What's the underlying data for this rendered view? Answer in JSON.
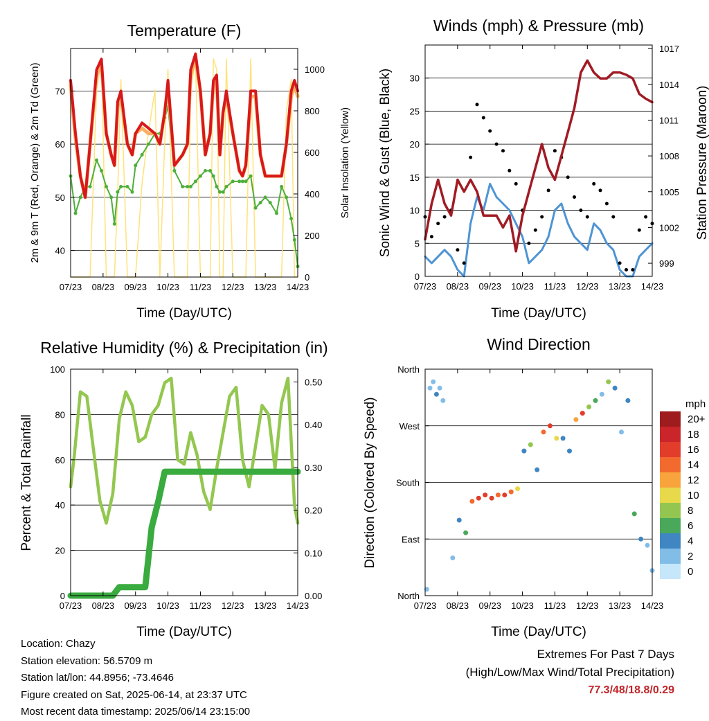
{
  "colors": {
    "red": "#d7191c",
    "orange": "#fdae61",
    "green": "#4daf3a",
    "yellow": "#ffe27a",
    "blue": "#4e94d4",
    "black": "#000000",
    "maroon": "#a11b24",
    "lightgreen": "#93c74f",
    "darkgreen": "#3aab3f",
    "extreme": "#c0262a"
  },
  "x_ticks": [
    "07/23",
    "08/23",
    "09/23",
    "10/23",
    "11/23",
    "12/23",
    "13/23",
    "14/23"
  ],
  "x_label": "Time (Day/UTC)",
  "speed_legend": {
    "title": "mph",
    "labels": [
      "20+",
      "18",
      "16",
      "14",
      "12",
      "10",
      "8",
      "6",
      "4",
      "2",
      "0"
    ],
    "colors": [
      "#9e1b1e",
      "#c9252a",
      "#e23c2b",
      "#f26a2e",
      "#f9a33c",
      "#e8d94a",
      "#92c650",
      "#4aa85a",
      "#3f86c2",
      "#82bde8",
      "#c6e6fa"
    ]
  },
  "footer": {
    "location": "Location: Chazy",
    "elevation": "Station elevation: 56.5709 m",
    "latlon": "Station lat/lon: 44.8956; -73.4646",
    "created": "Figure created on Sat, 2025-06-14, at 23:37 UTC",
    "recent": "Most recent data timestamp: 2025/06/14 23:15:00"
  },
  "extremes": {
    "line1": "Extremes For Past 7 Days",
    "line2": "(High/Low/Max Wind/Total Precipitation)",
    "values": "77.3/48/18.8/0.29"
  },
  "chart_data": [
    {
      "type": "line",
      "title": "Temperature (F)",
      "xlabel": "Time (Day/UTC)",
      "ylabel": "2m & 9m T (Red, Orange) & 2m Td (Green)",
      "y2label": "Solar Insolation (Yellow)",
      "ylim": [
        35,
        78
      ],
      "y2lim": [
        0,
        1100
      ],
      "yticks": [
        "40",
        "50",
        "60",
        "70"
      ],
      "y2ticks": [
        "0",
        "200",
        "400",
        "600",
        "800",
        "1000"
      ],
      "grid": true,
      "x": [
        7.0,
        7.15,
        7.3,
        7.45,
        7.6,
        7.8,
        7.95,
        8.1,
        8.25,
        8.35,
        8.45,
        8.55,
        8.75,
        8.9,
        9.0,
        9.2,
        9.4,
        9.6,
        9.75,
        9.9,
        10.0,
        10.2,
        10.45,
        10.6,
        10.7,
        10.85,
        11.0,
        11.15,
        11.3,
        11.4,
        11.5,
        11.6,
        11.7,
        11.8,
        12.0,
        12.2,
        12.3,
        12.4,
        12.55,
        12.7,
        12.85,
        13.0,
        13.15,
        13.35,
        13.5,
        13.65,
        13.8,
        13.9,
        14.0
      ],
      "series": [
        {
          "name": "2m T",
          "values": [
            72,
            62,
            54,
            50,
            60,
            74,
            76,
            62,
            58,
            56,
            68,
            70,
            60,
            58,
            62,
            64,
            63,
            62,
            60,
            66,
            72,
            56,
            58,
            60,
            74,
            77,
            70,
            58,
            62,
            72,
            73,
            58,
            66,
            70,
            62,
            55,
            54,
            56,
            70,
            70,
            58,
            54,
            54,
            54,
            54,
            60,
            70,
            72,
            70
          ]
        },
        {
          "name": "9m T",
          "values": [
            71,
            61,
            54,
            50,
            60,
            73,
            75,
            62,
            58,
            56,
            67,
            69,
            60,
            58,
            62,
            63,
            62,
            62,
            60,
            66,
            71,
            56,
            58,
            60,
            73,
            76,
            70,
            58,
            62,
            71,
            72,
            58,
            66,
            69,
            62,
            55,
            54,
            56,
            69,
            69,
            58,
            54,
            54,
            54,
            54,
            60,
            69,
            71,
            69
          ]
        },
        {
          "name": "2m Td",
          "values": [
            54,
            47,
            50,
            52,
            52,
            57,
            55,
            52,
            50,
            45,
            51,
            52,
            52,
            51,
            56,
            58,
            60,
            62,
            62,
            65,
            67,
            55,
            52,
            52,
            52,
            53,
            54,
            55,
            55,
            54,
            52,
            51,
            51,
            52,
            53,
            53,
            53,
            53,
            54,
            48,
            49,
            50,
            49,
            47,
            52,
            50,
            46,
            42,
            37
          ]
        },
        {
          "name": "Solar Insolation",
          "values": [
            0,
            0,
            0,
            0,
            0,
            900,
            1050,
            0,
            0,
            0,
            400,
            950,
            0,
            0,
            0,
            450,
            700,
            900,
            0,
            650,
            1000,
            0,
            0,
            0,
            900,
            1050,
            0,
            0,
            0,
            1050,
            1000,
            0,
            0,
            1050,
            0,
            0,
            0,
            0,
            1050,
            0,
            0,
            0,
            0,
            0,
            0,
            800,
            950,
            0,
            0
          ]
        }
      ]
    },
    {
      "type": "line",
      "title": "Winds (mph) & Pressure (mb)",
      "xlabel": "Time (Day/UTC)",
      "ylabel": "Sonic Wind & Gust (Blue, Black)",
      "y2label": "Station Pressure (Maroon)",
      "ylim": [
        0,
        35
      ],
      "y2lim": [
        997.9,
        1017.3
      ],
      "yticks": [
        "0",
        "5",
        "10",
        "15",
        "20",
        "25",
        "30"
      ],
      "y2ticks": [
        "999",
        "1002",
        "1005",
        "1008",
        "1011",
        "1014",
        "1017"
      ],
      "grid": true,
      "x": [
        7.0,
        7.2,
        7.4,
        7.6,
        7.8,
        8.0,
        8.2,
        8.4,
        8.6,
        8.8,
        9.0,
        9.2,
        9.4,
        9.6,
        9.8,
        10.0,
        10.2,
        10.4,
        10.6,
        10.8,
        11.0,
        11.2,
        11.4,
        11.6,
        11.8,
        12.0,
        12.2,
        12.4,
        12.6,
        12.8,
        13.0,
        13.2,
        13.4,
        13.6,
        13.8,
        14.0
      ],
      "series": [
        {
          "name": "Sonic Wind",
          "values": [
            3,
            2,
            3,
            4,
            3,
            1,
            0,
            8,
            12,
            10,
            14,
            12,
            11,
            10,
            8,
            6,
            2,
            3,
            4,
            6,
            10,
            11,
            8,
            6,
            5,
            4,
            8,
            7,
            5,
            4,
            1,
            0,
            0,
            3,
            4,
            5
          ]
        },
        {
          "name": "Gust",
          "values": [
            9,
            6,
            8,
            9,
            10,
            4,
            2,
            18,
            26,
            24,
            22,
            20,
            19,
            16,
            14,
            10,
            5,
            7,
            9,
            13,
            19,
            18,
            15,
            12,
            10,
            9,
            14,
            13,
            11,
            9,
            2,
            1,
            1,
            7,
            9,
            8
          ]
        },
        {
          "name": "Station Pressure",
          "values": [
            1001,
            1004,
            1006,
            1004,
            1003,
            1006,
            1005,
            1006,
            1005,
            1003,
            1003,
            1003,
            1002,
            1003,
            1000,
            1003,
            1005,
            1007,
            1009,
            1007,
            1006,
            1008,
            1010,
            1012,
            1015,
            1016,
            1015,
            1014.5,
            1014.5,
            1015,
            1015,
            1014.8,
            1014.5,
            1013.2,
            1012.8,
            1012.5
          ]
        }
      ]
    },
    {
      "type": "line",
      "title": "Relative Humidity (%) & Precipitation (in)",
      "xlabel": "Time (Day/UTC)",
      "ylabel": "Percent & Total Rainfall",
      "ylim": [
        0,
        100
      ],
      "y2lim": [
        0,
        0.53
      ],
      "yticks": [
        "0",
        "20",
        "40",
        "60",
        "80",
        "100"
      ],
      "y2ticks": [
        "0.00",
        "0.10",
        "0.20",
        "0.30",
        "0.40",
        "0.50"
      ],
      "grid": true,
      "x": [
        7.0,
        7.1,
        7.3,
        7.5,
        7.7,
        7.9,
        8.1,
        8.3,
        8.5,
        8.7,
        8.9,
        9.1,
        9.3,
        9.5,
        9.7,
        9.9,
        10.1,
        10.3,
        10.5,
        10.7,
        10.9,
        11.1,
        11.3,
        11.5,
        11.7,
        11.9,
        12.1,
        12.3,
        12.5,
        12.7,
        12.9,
        13.1,
        13.3,
        13.5,
        13.7,
        13.9,
        14.0
      ],
      "series": [
        {
          "name": "Relative Humidity",
          "values": [
            48,
            60,
            90,
            88,
            65,
            42,
            32,
            45,
            78,
            90,
            84,
            68,
            70,
            80,
            84,
            94,
            96,
            60,
            58,
            72,
            62,
            46,
            38,
            56,
            72,
            88,
            92,
            60,
            48,
            66,
            84,
            80,
            56,
            85,
            96,
            40,
            32
          ]
        },
        {
          "name": "Total Precipitation",
          "values": [
            0,
            0,
            0,
            0,
            0,
            0,
            0,
            0,
            0.02,
            0.02,
            0.02,
            0.02,
            0.02,
            0.16,
            0.22,
            0.29,
            0.29,
            0.29,
            0.29,
            0.29,
            0.29,
            0.29,
            0.29,
            0.29,
            0.29,
            0.29,
            0.29,
            0.29,
            0.29,
            0.29,
            0.29,
            0.29,
            0.29,
            0.29,
            0.29,
            0.29,
            0.29
          ]
        }
      ]
    },
    {
      "type": "scatter",
      "title": "Wind Direction",
      "xlabel": "Time (Day/UTC)",
      "ylabel": "Direction (Colored By Speed)",
      "yticks": [
        "North",
        "East",
        "South",
        "West",
        "North"
      ],
      "ylim": [
        0,
        360
      ],
      "grid": true,
      "x": [
        7.05,
        7.15,
        7.25,
        7.35,
        7.45,
        7.55,
        7.85,
        8.05,
        8.25,
        8.45,
        8.65,
        8.85,
        9.05,
        9.25,
        9.45,
        9.65,
        9.85,
        10.05,
        10.25,
        10.45,
        10.65,
        10.85,
        11.05,
        11.25,
        11.45,
        11.65,
        11.85,
        12.05,
        12.25,
        12.45,
        12.65,
        12.85,
        13.05,
        13.25,
        13.45,
        13.65,
        13.85,
        14.0
      ],
      "values": [
        10,
        330,
        340,
        320,
        330,
        310,
        60,
        120,
        100,
        150,
        155,
        160,
        155,
        160,
        160,
        165,
        170,
        230,
        240,
        200,
        260,
        270,
        250,
        250,
        230,
        280,
        290,
        300,
        310,
        320,
        340,
        330,
        260,
        310,
        130,
        90,
        80,
        40
      ],
      "speeds": [
        2,
        1,
        2,
        3,
        2,
        1,
        1,
        3,
        6,
        14,
        15,
        16,
        15,
        14,
        16,
        13,
        10,
        4,
        8,
        3,
        13,
        15,
        9,
        3,
        4,
        12,
        16,
        8,
        6,
        2,
        7,
        3,
        1,
        4,
        6,
        3,
        2,
        2
      ]
    }
  ]
}
